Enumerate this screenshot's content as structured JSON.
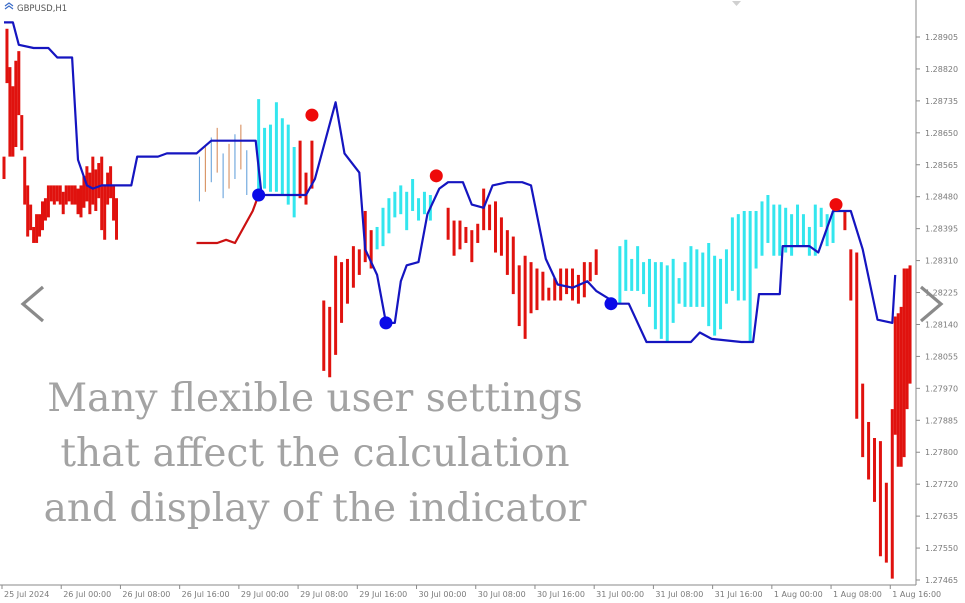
{
  "symbol": "GBPUSD,H1",
  "overlay_lines": [
    "Many flexible user settings",
    "that affect the calculation",
    "and display of the indicator"
  ],
  "icons": {
    "prev": "chevron-left-icon",
    "next": "chevron-right-icon",
    "scroll_marker": "triangle-down-icon"
  },
  "colors": {
    "bear_bar": "#e0120e",
    "bull_bar": "#33e6ee",
    "trend_line": "#1515c0",
    "trend_line_bear": "#cc1111",
    "dot_top": "#ee0a0a",
    "dot_bottom": "#0a0ae8",
    "minor_bar_1": "#d4844e",
    "minor_bar_2": "#5a9ad8",
    "axis": "#8a8a8a"
  },
  "chart_data": {
    "type": "line",
    "title": "GBPUSD,H1",
    "xlabel": "",
    "ylabel": "",
    "ylim": [
      1.2741,
      1.2924
    ],
    "grid": false,
    "y_ticks": [
      "1.28905",
      "1.28820",
      "1.28735",
      "1.28650",
      "1.28565",
      "1.28480",
      "1.28395",
      "1.28310",
      "1.28225",
      "1.28140",
      "1.28055",
      "1.27970",
      "1.27885",
      "1.27800",
      "1.27720",
      "1.27635",
      "1.27550",
      "1.27465"
    ],
    "x_ticks": [
      {
        "label": "25 Jul 2024",
        "index": 0
      },
      {
        "label": "26 Jul 00:00",
        "index": 20
      },
      {
        "label": "26 Jul 08:00",
        "index": 40
      },
      {
        "label": "26 Jul 16:00",
        "index": 60
      },
      {
        "label": "29 Jul 00:00",
        "index": 80
      },
      {
        "label": "29 Jul 08:00",
        "index": 100
      },
      {
        "label": "29 Jul 16:00",
        "index": 120
      },
      {
        "label": "30 Jul 00:00",
        "index": 140
      },
      {
        "label": "30 Jul 08:00",
        "index": 160
      },
      {
        "label": "30 Jul 16:00",
        "index": 180
      },
      {
        "label": "31 Jul 00:00",
        "index": 200
      },
      {
        "label": "31 Jul 08:00",
        "index": 220
      },
      {
        "label": "31 Jul 16:00",
        "index": 240
      },
      {
        "label": "1 Aug 00:00",
        "index": 260
      },
      {
        "label": "1 Aug 08:00",
        "index": 280
      },
      {
        "label": "1 Aug 16:00",
        "index": 300
      }
    ],
    "series": [
      {
        "kind": "trend_line",
        "points": [
          [
            0,
            1.2917
          ],
          [
            3,
            1.2917
          ],
          [
            5,
            1.291
          ],
          [
            10,
            1.2909
          ],
          [
            15,
            1.2909
          ],
          [
            18,
            1.2906
          ],
          [
            23,
            1.2906
          ],
          [
            25,
            1.2874
          ],
          [
            28,
            1.2866
          ],
          [
            30,
            1.2865
          ],
          [
            33,
            1.2866
          ],
          [
            43,
            1.2866
          ],
          [
            45,
            1.2875
          ],
          [
            52,
            1.2875
          ],
          [
            55,
            1.2876
          ],
          [
            62,
            1.2876
          ],
          [
            65,
            1.2876
          ],
          [
            70,
            1.288
          ],
          [
            80,
            1.288
          ],
          [
            85,
            1.288
          ],
          [
            87,
            1.2863
          ],
          [
            102,
            1.2863
          ],
          [
            105,
            1.2868
          ],
          [
            112,
            1.2892
          ],
          [
            115,
            1.2876
          ],
          [
            120,
            1.287
          ],
          [
            122,
            1.2846
          ],
          [
            126,
            1.2838
          ],
          [
            129,
            1.2823
          ],
          [
            132,
            1.2823
          ],
          [
            134,
            1.2836
          ],
          [
            136,
            1.2841
          ],
          [
            140,
            1.2842
          ],
          [
            143,
            1.2857
          ],
          [
            147,
            1.2865
          ],
          [
            150,
            1.2867
          ],
          [
            155,
            1.2867
          ],
          [
            158,
            1.286
          ],
          [
            162,
            1.2859
          ],
          [
            165,
            1.2866
          ],
          [
            170,
            1.2867
          ],
          [
            175,
            1.2867
          ],
          [
            178,
            1.2866
          ],
          [
            183,
            1.2843
          ],
          [
            187,
            1.2835
          ],
          [
            192,
            1.2834
          ],
          [
            197,
            1.2836
          ],
          [
            200,
            1.2833
          ],
          [
            207,
            1.2829
          ],
          [
            211,
            1.2829
          ],
          [
            217,
            1.2817
          ],
          [
            222,
            1.2817
          ],
          [
            226,
            1.2817
          ],
          [
            232,
            1.2817
          ],
          [
            235,
            1.282
          ],
          [
            239,
            1.2818
          ],
          [
            249,
            1.2817
          ],
          [
            253,
            1.2817
          ],
          [
            255,
            1.2832
          ],
          [
            257,
            1.2832
          ],
          [
            262,
            1.2832
          ],
          [
            263,
            1.2847
          ],
          [
            272,
            1.2847
          ],
          [
            275,
            1.2845
          ],
          [
            280,
            1.2858
          ],
          [
            286,
            1.2858
          ],
          [
            290,
            1.2846
          ],
          [
            295,
            1.2824
          ],
          [
            300,
            1.2823
          ],
          [
            301,
            1.2838
          ]
        ]
      },
      {
        "kind": "trend_line_lower",
        "points": [
          [
            65,
            1.2848
          ],
          [
            72,
            1.2848
          ],
          [
            75,
            1.2849
          ],
          [
            78,
            1.2848
          ],
          [
            84,
            1.2858
          ],
          [
            86,
            1.2863
          ]
        ]
      }
    ],
    "bars": {
      "bear": [
        [
          0,
          1.2868,
          1.2875
        ],
        [
          1,
          1.2898,
          1.2915
        ],
        [
          2,
          1.2875,
          1.2903
        ],
        [
          3,
          1.2875,
          1.2897
        ],
        [
          4,
          1.2878,
          1.2905
        ],
        [
          5,
          1.2888,
          1.2908
        ],
        [
          6,
          1.2877,
          1.2888
        ],
        [
          7,
          1.286,
          1.2875
        ],
        [
          8,
          1.285,
          1.2866
        ],
        [
          9,
          1.2852,
          1.286
        ],
        [
          10,
          1.2848,
          1.2853
        ],
        [
          11,
          1.2848,
          1.2857
        ],
        [
          12,
          1.285,
          1.2857
        ],
        [
          13,
          1.2852,
          1.2861
        ],
        [
          14,
          1.2855,
          1.2862
        ],
        [
          15,
          1.2856,
          1.2866
        ],
        [
          16,
          1.2861,
          1.2866
        ],
        [
          17,
          1.286,
          1.2866
        ],
        [
          18,
          1.2861,
          1.2866
        ],
        [
          19,
          1.286,
          1.2866
        ],
        [
          20,
          1.2857,
          1.2864
        ],
        [
          21,
          1.286,
          1.2866
        ],
        [
          22,
          1.2861,
          1.2866
        ],
        [
          23,
          1.286,
          1.2866
        ],
        [
          24,
          1.286,
          1.2866
        ],
        [
          25,
          1.2857,
          1.2865
        ],
        [
          26,
          1.2856,
          1.2866
        ],
        [
          27,
          1.2859,
          1.2869
        ],
        [
          28,
          1.2861,
          1.2872
        ],
        [
          29,
          1.2857,
          1.287
        ],
        [
          30,
          1.286,
          1.2875
        ],
        [
          31,
          1.2858,
          1.2871
        ],
        [
          32,
          1.2862,
          1.2873
        ],
        [
          33,
          1.2852,
          1.2875
        ],
        [
          34,
          1.2849,
          1.2866
        ],
        [
          35,
          1.286,
          1.287
        ],
        [
          36,
          1.2862,
          1.2872
        ],
        [
          37,
          1.2855,
          1.2866
        ],
        [
          38,
          1.2849,
          1.2862
        ],
        [
          100,
          1.2862,
          1.288
        ],
        [
          102,
          1.286,
          1.287
        ],
        [
          104,
          1.2865,
          1.288
        ],
        [
          108,
          1.2808,
          1.283
        ],
        [
          110,
          1.2806,
          1.2828
        ],
        [
          112,
          1.2813,
          1.2844
        ],
        [
          114,
          1.2823,
          1.2842
        ],
        [
          116,
          1.2829,
          1.2843
        ],
        [
          118,
          1.2834,
          1.2847
        ],
        [
          120,
          1.2838,
          1.2846
        ],
        [
          122,
          1.2842,
          1.2858
        ],
        [
          124,
          1.284,
          1.2852
        ],
        [
          150,
          1.2849,
          1.2859
        ],
        [
          152,
          1.2844,
          1.2855
        ],
        [
          154,
          1.2846,
          1.2855
        ],
        [
          156,
          1.2848,
          1.2853
        ],
        [
          158,
          1.2842,
          1.2852
        ],
        [
          160,
          1.2848,
          1.2854
        ],
        [
          162,
          1.2852,
          1.2865
        ],
        [
          164,
          1.2852,
          1.286
        ],
        [
          166,
          1.2845,
          1.2861
        ],
        [
          168,
          1.2844,
          1.2856
        ],
        [
          170,
          1.2838,
          1.2852
        ],
        [
          172,
          1.2832,
          1.285
        ],
        [
          174,
          1.2822,
          1.2841
        ],
        [
          176,
          1.2818,
          1.2844
        ],
        [
          178,
          1.2826,
          1.2842
        ],
        [
          180,
          1.2827,
          1.284
        ],
        [
          182,
          1.283,
          1.2839
        ],
        [
          184,
          1.283,
          1.2834
        ],
        [
          186,
          1.283,
          1.2837
        ],
        [
          188,
          1.283,
          1.284
        ],
        [
          190,
          1.2832,
          1.284
        ],
        [
          192,
          1.283,
          1.284
        ],
        [
          194,
          1.2829,
          1.2838
        ],
        [
          196,
          1.2831,
          1.2842
        ],
        [
          198,
          1.2836,
          1.2842
        ],
        [
          200,
          1.2838,
          1.2846
        ],
        [
          284,
          1.2852,
          1.2858
        ],
        [
          286,
          1.283,
          1.2846
        ],
        [
          288,
          1.2793,
          1.2845
        ],
        [
          290,
          1.2781,
          1.2804
        ],
        [
          292,
          1.2774,
          1.2792
        ],
        [
          294,
          1.2767,
          1.2787
        ],
        [
          296,
          1.275,
          1.2786
        ],
        [
          298,
          1.2748,
          1.2773
        ],
        [
          300,
          1.2743,
          1.2796
        ],
        [
          301,
          1.2788,
          1.2825
        ],
        [
          302,
          1.2778,
          1.2826
        ],
        [
          303,
          1.2778,
          1.2828
        ],
        [
          304,
          1.2781,
          1.284
        ],
        [
          305,
          1.2796,
          1.284
        ],
        [
          306,
          1.2804,
          1.2841
        ]
      ],
      "bull": [
        [
          86,
          1.2863,
          1.2893
        ],
        [
          88,
          1.2865,
          1.2884
        ],
        [
          90,
          1.2864,
          1.2885
        ],
        [
          92,
          1.2864,
          1.2892
        ],
        [
          94,
          1.2863,
          1.2887
        ],
        [
          96,
          1.286,
          1.2885
        ],
        [
          98,
          1.2856,
          1.2878
        ],
        [
          126,
          1.2846,
          1.2853
        ],
        [
          128,
          1.2847,
          1.2859
        ],
        [
          130,
          1.2851,
          1.2862
        ],
        [
          132,
          1.2856,
          1.2864
        ],
        [
          134,
          1.2857,
          1.2866
        ],
        [
          136,
          1.2852,
          1.2864
        ],
        [
          138,
          1.2858,
          1.2868
        ],
        [
          140,
          1.2855,
          1.2862
        ],
        [
          142,
          1.2857,
          1.2864
        ],
        [
          144,
          1.2855,
          1.2863
        ],
        [
          208,
          1.2829,
          1.2847
        ],
        [
          210,
          1.2833,
          1.2849
        ],
        [
          212,
          1.2833,
          1.2843
        ],
        [
          214,
          1.2833,
          1.2847
        ],
        [
          216,
          1.2832,
          1.2842
        ],
        [
          218,
          1.2828,
          1.2843
        ],
        [
          220,
          1.2821,
          1.2842
        ],
        [
          222,
          1.2818,
          1.2842
        ],
        [
          224,
          1.2817,
          1.2841
        ],
        [
          226,
          1.2823,
          1.2843
        ],
        [
          228,
          1.2829,
          1.2837
        ],
        [
          230,
          1.2828,
          1.2842
        ],
        [
          232,
          1.2828,
          1.2847
        ],
        [
          234,
          1.2828,
          1.2846
        ],
        [
          236,
          1.2828,
          1.2845
        ],
        [
          238,
          1.2822,
          1.2848
        ],
        [
          240,
          1.2819,
          1.2844
        ],
        [
          242,
          1.2821,
          1.2843
        ],
        [
          244,
          1.2829,
          1.2846
        ],
        [
          246,
          1.2833,
          1.2856
        ],
        [
          248,
          1.283,
          1.2857
        ],
        [
          250,
          1.283,
          1.2858
        ],
        [
          252,
          1.2817,
          1.2858
        ],
        [
          254,
          1.284,
          1.2858
        ],
        [
          256,
          1.2844,
          1.2861
        ],
        [
          258,
          1.2848,
          1.2863
        ],
        [
          260,
          1.2844,
          1.286
        ],
        [
          262,
          1.2844,
          1.286
        ],
        [
          264,
          1.2845,
          1.2859
        ],
        [
          266,
          1.2844,
          1.2857
        ],
        [
          268,
          1.2847,
          1.286
        ],
        [
          270,
          1.2847,
          1.2857
        ],
        [
          272,
          1.2844,
          1.2853
        ],
        [
          274,
          1.2844,
          1.286
        ],
        [
          276,
          1.2853,
          1.2859
        ],
        [
          278,
          1.2847,
          1.2857
        ],
        [
          280,
          1.2848,
          1.2858
        ]
      ]
    },
    "dots": [
      {
        "kind": "top",
        "x": 104,
        "y": 1.2888
      },
      {
        "kind": "bottom",
        "x": 86,
        "y": 1.2863
      },
      {
        "kind": "top",
        "x": 146,
        "y": 1.2869
      },
      {
        "kind": "bottom",
        "x": 129,
        "y": 1.2823
      },
      {
        "kind": "bottom",
        "x": 205,
        "y": 1.2829
      },
      {
        "kind": "top",
        "x": 281,
        "y": 1.286
      }
    ]
  }
}
